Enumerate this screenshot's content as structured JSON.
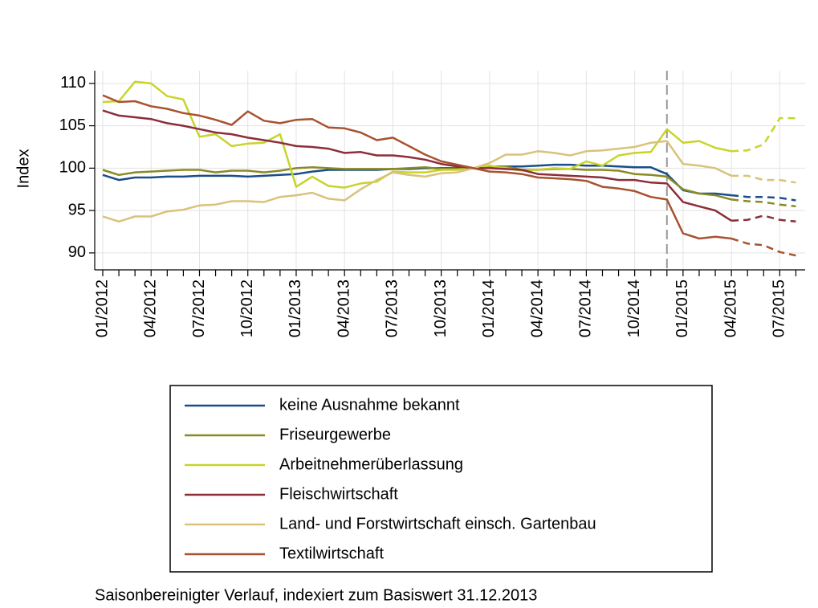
{
  "chart_data": {
    "type": "line",
    "y_label": "Index",
    "footnote": "Saisonbereinigter Verlauf, indexiert zum Basiswert 31.12.2013",
    "categories": [
      "01/2012",
      null,
      null,
      "04/2012",
      null,
      null,
      "07/2012",
      null,
      null,
      "10/2012",
      null,
      null,
      "01/2013",
      null,
      null,
      "04/2013",
      null,
      null,
      "07/2013",
      null,
      null,
      "10/2013",
      null,
      null,
      "01/2014",
      null,
      null,
      "04/2014",
      null,
      null,
      "07/2014",
      null,
      null,
      "10/2014",
      null,
      null,
      "01/2015",
      null,
      null,
      "04/2015",
      null,
      null,
      "07/2015",
      null
    ],
    "ylim": [
      88,
      111.5
    ],
    "yticks": [
      90,
      95,
      100,
      105,
      110
    ],
    "grid": true,
    "vline_at": 35,
    "dashed_from": 39,
    "series": [
      {
        "name": "keine Ausnahme bekannt",
        "color": "#1a4e8a",
        "values": [
          99.2,
          98.6,
          98.9,
          98.9,
          99.0,
          99.0,
          99.1,
          99.1,
          99.1,
          99.0,
          99.1,
          99.2,
          99.3,
          99.6,
          99.8,
          99.8,
          99.8,
          99.8,
          99.9,
          99.9,
          100.0,
          100.0,
          100.0,
          100.0,
          100.2,
          100.2,
          100.2,
          100.3,
          100.4,
          100.4,
          100.3,
          100.3,
          100.2,
          100.1,
          100.1,
          99.3,
          97.4,
          97.0,
          97.0,
          96.8,
          96.6,
          96.6,
          96.5,
          96.2
        ]
      },
      {
        "name": "Friseurgewerbe",
        "color": "#8a8a24",
        "values": [
          99.8,
          99.2,
          99.5,
          99.6,
          99.7,
          99.8,
          99.8,
          99.5,
          99.7,
          99.7,
          99.5,
          99.7,
          100.0,
          100.1,
          100.0,
          99.9,
          99.9,
          99.9,
          99.9,
          100.0,
          100.1,
          99.9,
          99.9,
          100.0,
          100.1,
          100.2,
          99.8,
          99.8,
          99.9,
          99.9,
          99.8,
          99.8,
          99.7,
          99.3,
          99.2,
          99.0,
          97.5,
          97.0,
          96.8,
          96.3,
          96.1,
          96.0,
          95.7,
          95.5
        ]
      },
      {
        "name": "Arbeitnehmerüberlassung",
        "color": "#c8d42a",
        "values": [
          107.8,
          107.9,
          110.2,
          110.0,
          108.5,
          108.1,
          103.7,
          104.0,
          102.6,
          102.9,
          103.0,
          104.0,
          97.8,
          99.0,
          97.9,
          97.7,
          98.2,
          98.4,
          99.6,
          99.5,
          99.5,
          99.8,
          99.8,
          100.0,
          100.3,
          100.0,
          99.7,
          99.8,
          100.0,
          99.9,
          100.8,
          100.3,
          101.5,
          101.8,
          101.9,
          104.6,
          103.0,
          103.2,
          102.4,
          102.0,
          102.1,
          102.8,
          105.9,
          105.9
        ]
      },
      {
        "name": "Fleischwirtschaft",
        "color": "#8b2e3a",
        "values": [
          106.8,
          106.2,
          106.0,
          105.8,
          105.3,
          105.0,
          104.6,
          104.2,
          104.0,
          103.6,
          103.3,
          103.0,
          102.6,
          102.5,
          102.3,
          101.8,
          101.9,
          101.5,
          101.5,
          101.3,
          101.0,
          100.5,
          100.2,
          100.0,
          100.0,
          99.9,
          99.8,
          99.3,
          99.2,
          99.1,
          99.0,
          98.9,
          98.6,
          98.6,
          98.3,
          98.2,
          96.0,
          95.5,
          95.0,
          93.8,
          93.9,
          94.4,
          93.9,
          93.7
        ]
      },
      {
        "name": "Land- und Forstwirtschaft einsch. Gartenbau",
        "color": "#d9c27a",
        "values": [
          94.3,
          93.7,
          94.3,
          94.3,
          94.9,
          95.1,
          95.6,
          95.7,
          96.1,
          96.1,
          96.0,
          96.6,
          96.8,
          97.1,
          96.4,
          96.2,
          97.5,
          98.6,
          99.5,
          99.2,
          99.0,
          99.4,
          99.5,
          100.0,
          100.6,
          101.6,
          101.6,
          102.0,
          101.8,
          101.5,
          102.0,
          102.1,
          102.3,
          102.5,
          103.0,
          103.2,
          100.5,
          100.3,
          100.0,
          99.1,
          99.1,
          98.6,
          98.6,
          98.3
        ]
      },
      {
        "name": "Textilwirtschaft",
        "color": "#a8522f",
        "values": [
          108.6,
          107.8,
          107.9,
          107.3,
          107.0,
          106.5,
          106.2,
          105.7,
          105.1,
          106.7,
          105.6,
          105.3,
          105.7,
          105.8,
          104.8,
          104.7,
          104.2,
          103.3,
          103.6,
          102.6,
          101.6,
          100.8,
          100.4,
          100.0,
          99.6,
          99.5,
          99.3,
          98.9,
          98.8,
          98.7,
          98.5,
          97.8,
          97.6,
          97.3,
          96.6,
          96.3,
          92.3,
          91.7,
          91.9,
          91.7,
          91.1,
          90.9,
          90.1,
          89.7
        ]
      }
    ]
  }
}
